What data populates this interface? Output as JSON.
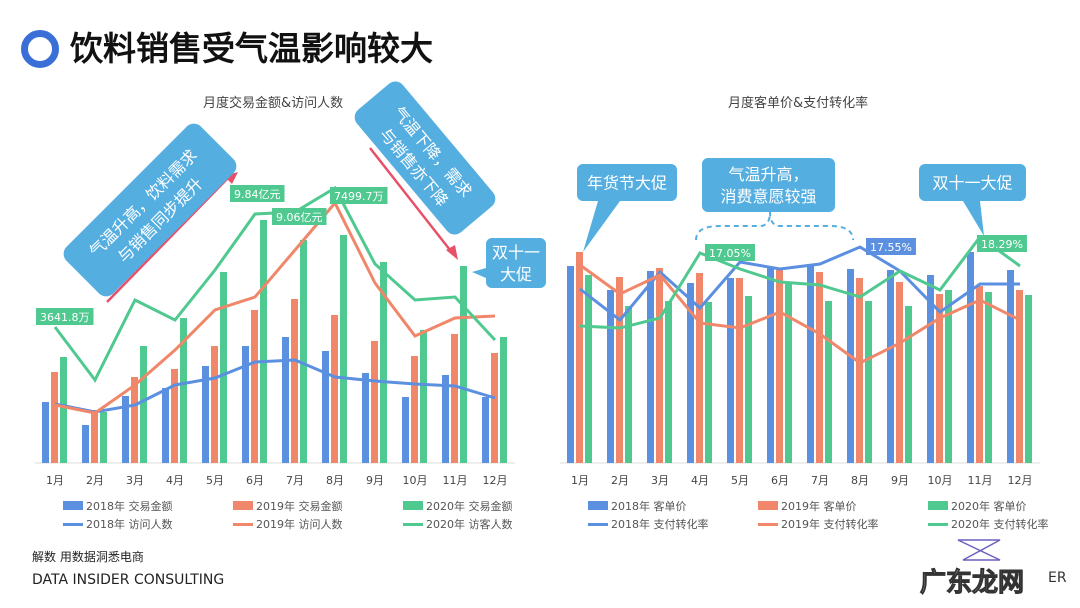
{
  "title": "饮料销售受气温影响较大",
  "footer": {
    "tagline": "解数 用数据洞悉电商",
    "company": "DATA INSIDER CONSULTING",
    "watermark": "广东龙网",
    "logo_text": "ER"
  },
  "colors": {
    "blue": "#5b8fe0",
    "orange": "#f0876a",
    "green": "#4fc98f",
    "callout": "#55aee0",
    "arrow": "#e8506a"
  },
  "chart_data": [
    {
      "type": "bar+line",
      "title": "月度交易金额&访问人数",
      "categories": [
        "1月",
        "2月",
        "3月",
        "4月",
        "5月",
        "6月",
        "7月",
        "8月",
        "9月",
        "10月",
        "11月",
        "12月"
      ],
      "bar_series": [
        {
          "name": "2018年 交易金额",
          "values": [
            61,
            38,
            67,
            75,
            97,
            117,
            126,
            112,
            90,
            66,
            88,
            66
          ]
        },
        {
          "name": "2019年 交易金额",
          "values": [
            91,
            53,
            86,
            94,
            117,
            153,
            164,
            148,
            122,
            107,
            129,
            110
          ]
        },
        {
          "name": "2020年 交易金额",
          "values": [
            106,
            51,
            117,
            145,
            191,
            243,
            223,
            228,
            201,
            133,
            197,
            126
          ]
        }
      ],
      "line_series": [
        {
          "name": "2018年 访问人数",
          "values": [
            59,
            51,
            58,
            78,
            85,
            101,
            103,
            86,
            82,
            79,
            77,
            65
          ]
        },
        {
          "name": "2019年 访问人数",
          "values": [
            58,
            50,
            78,
            113,
            153,
            166,
            213,
            260,
            180,
            127,
            145,
            147
          ]
        },
        {
          "name": "2020年 访客人数",
          "values": [
            136,
            83,
            163,
            143,
            193,
            249,
            251,
            275,
            199,
            163,
            166,
            123
          ]
        }
      ],
      "data_labels": [
        "3641.8万",
        "9.84亿元",
        "9.06亿元",
        "7499.7万"
      ],
      "annotations": [
        "气温升高，饮料需求与销售同步提升",
        "气温下降，需求与销售亦下降",
        "双十一大促"
      ]
    },
    {
      "type": "bar+line",
      "title": "月度客单价&支付转化率",
      "categories": [
        "1月",
        "2月",
        "3月",
        "4月",
        "5月",
        "6月",
        "7月",
        "8月",
        "9月",
        "10月",
        "11月",
        "12月"
      ],
      "bar_series": [
        {
          "name": "2018年 客单价",
          "values": [
            197,
            173,
            192,
            180,
            185,
            195,
            197,
            194,
            193,
            188,
            211,
            193
          ]
        },
        {
          "name": "2019年 客单价",
          "values": [
            211,
            186,
            195,
            190,
            185,
            193,
            191,
            185,
            181,
            169,
            177,
            173
          ]
        },
        {
          "name": "2020年 客单价",
          "values": [
            188,
            157,
            162,
            161,
            167,
            179,
            162,
            162,
            157,
            173,
            171,
            168
          ]
        }
      ],
      "line_series": [
        {
          "name": "2018年 支付转化率",
          "values": [
            174,
            143,
            191,
            155,
            201,
            194,
            199,
            216,
            192,
            151,
            179,
            179
          ]
        },
        {
          "name": "2019年 支付转化率",
          "values": [
            198,
            169,
            188,
            140,
            135,
            151,
            129,
            100,
            120,
            145,
            163,
            143
          ]
        },
        {
          "name": "2020年 支付转化率",
          "values": [
            137,
            135,
            145,
            210,
            194,
            181,
            178,
            166,
            192,
            173,
            226,
            197
          ]
        }
      ],
      "data_labels": [
        "17.05%",
        "17.55%",
        "18.29%"
      ],
      "annotations": [
        "年货节大促",
        "气温升高，",
        "消费意愿较强",
        "双十一大促"
      ]
    }
  ]
}
